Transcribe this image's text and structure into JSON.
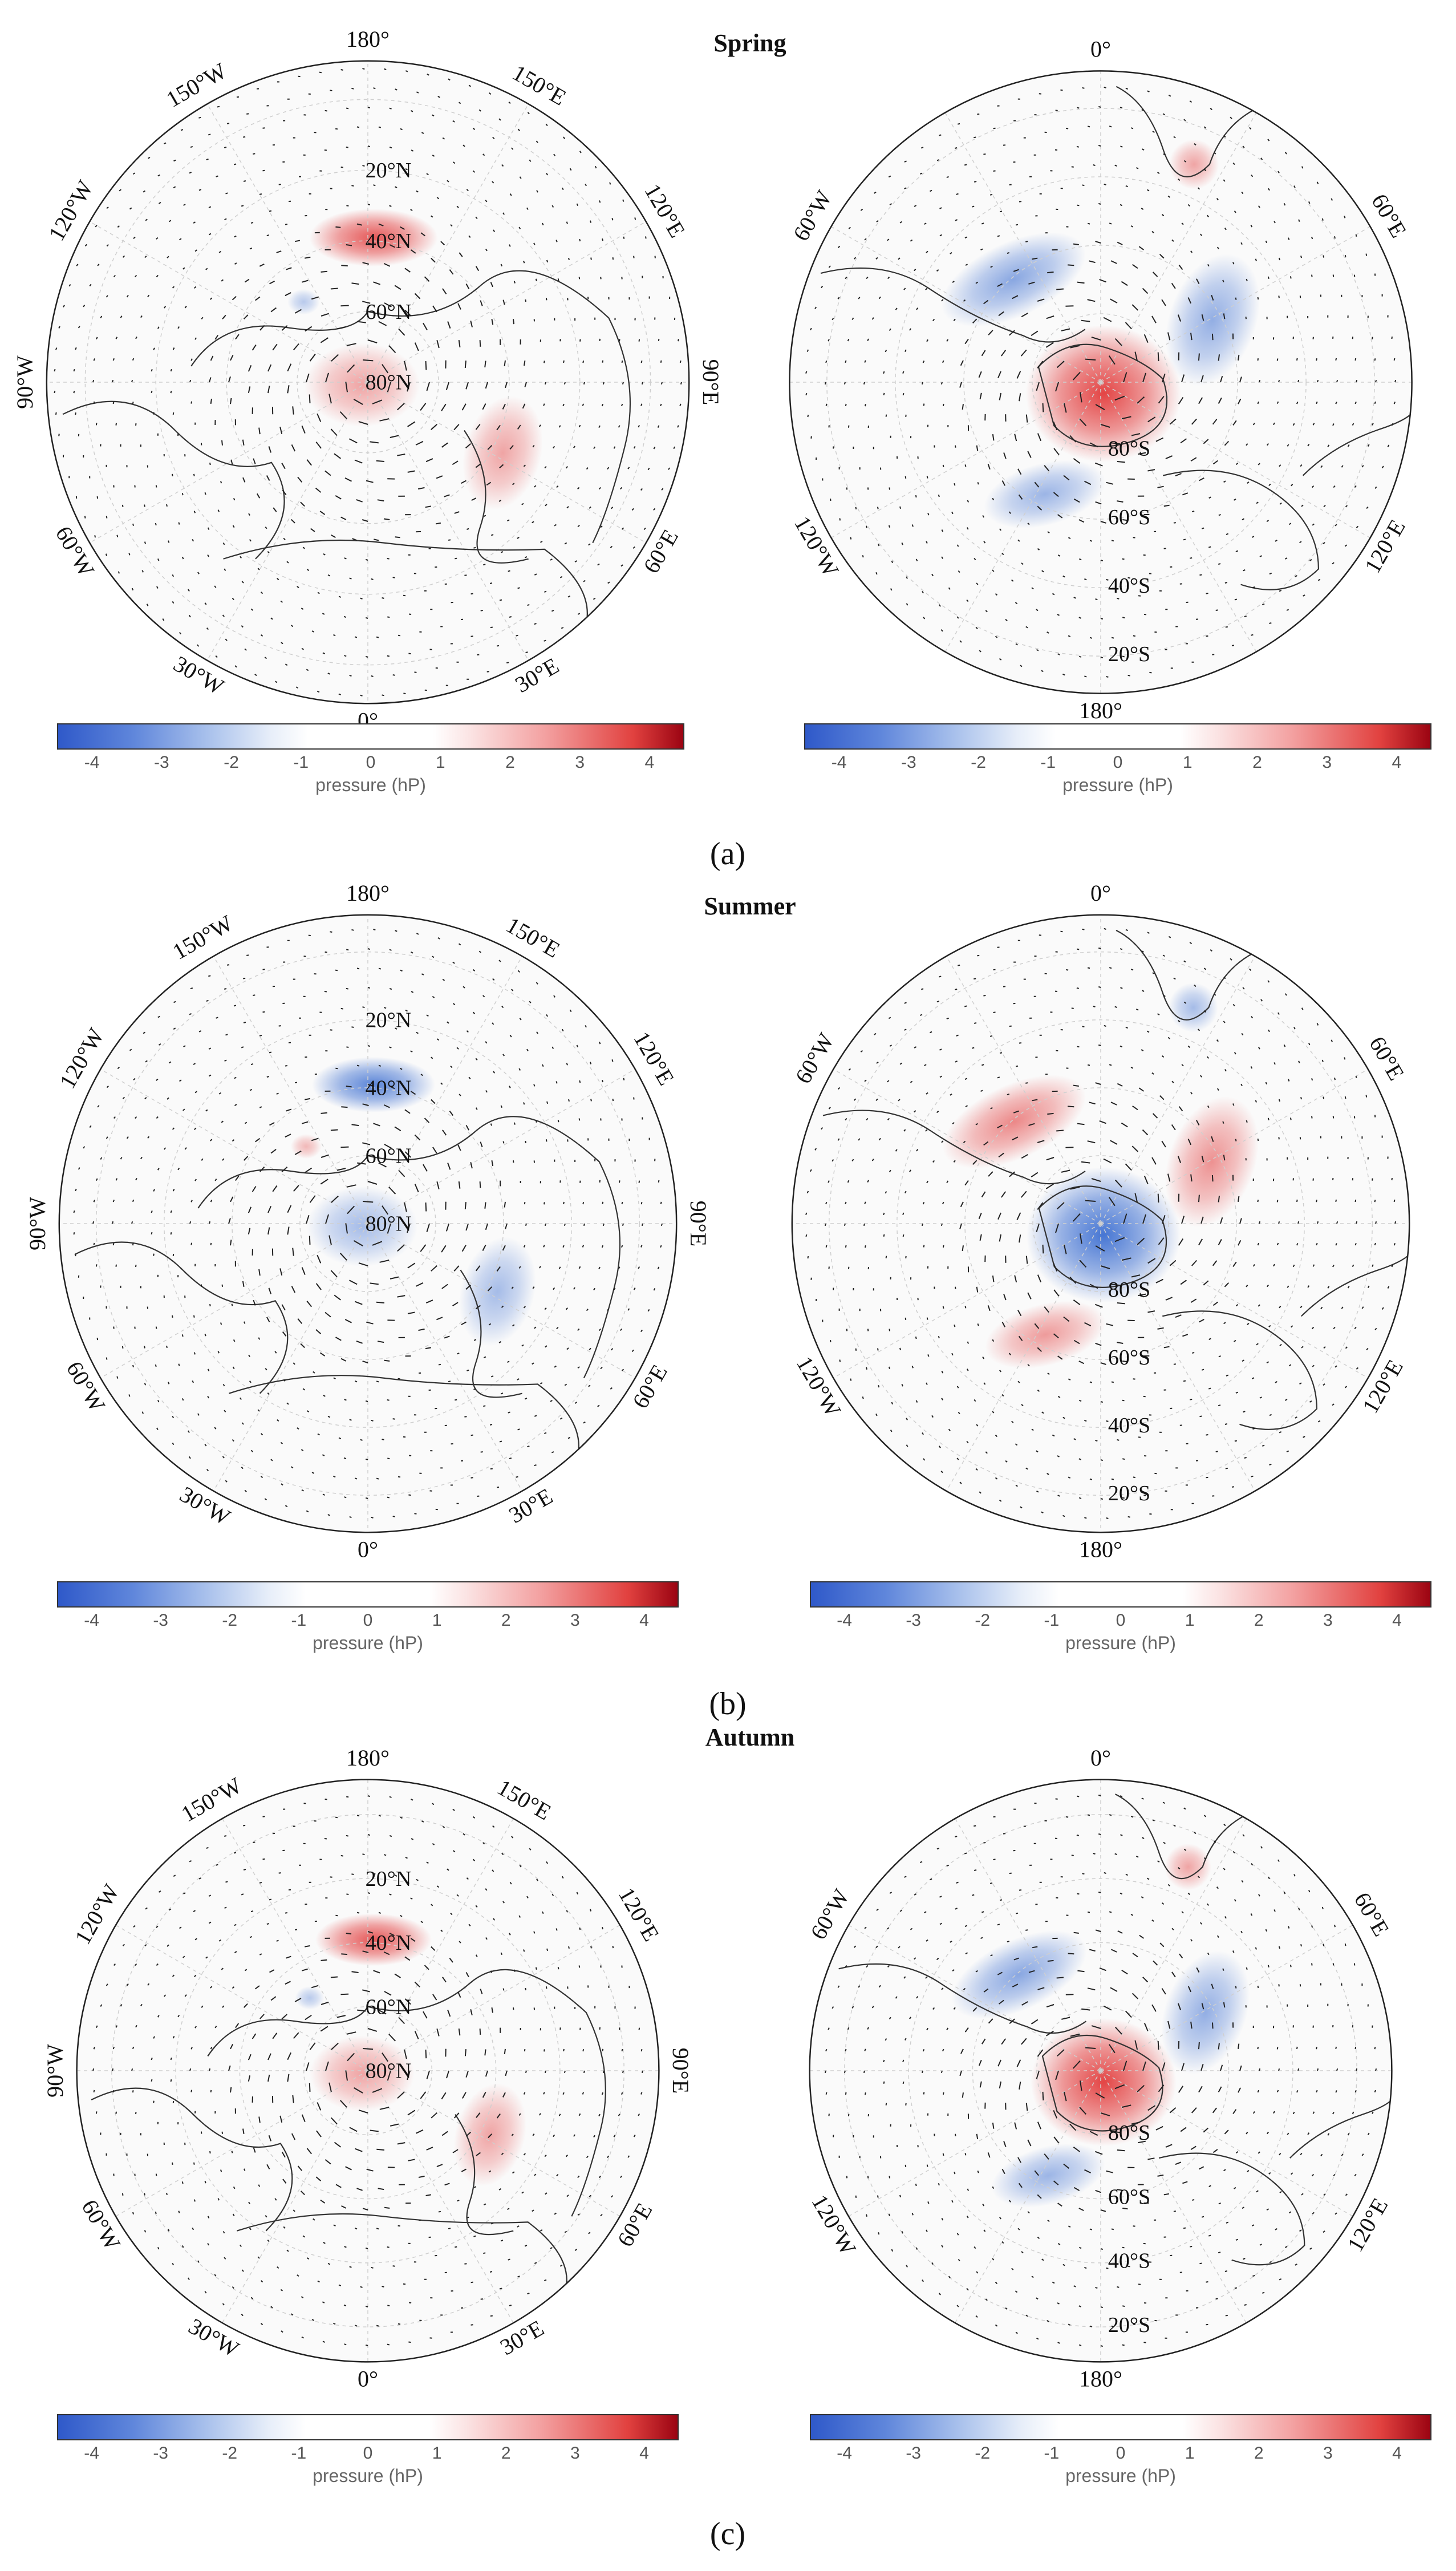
{
  "figure": {
    "rows": [
      {
        "id": "a",
        "season": "Spring",
        "label": "(a)",
        "north_sign": "pos",
        "south_sign": "pos"
      },
      {
        "id": "b",
        "season": "Summer",
        "label": "(b)",
        "north_sign": "neg",
        "south_sign": "neg"
      },
      {
        "id": "c",
        "season": "Autumn",
        "label": "(c)",
        "north_sign": "pos",
        "south_sign": "pos"
      }
    ],
    "north_map": {
      "hemisphere": "north",
      "lon_labels": {
        "top": "180°",
        "bottom": "0°",
        "left": "90°W",
        "right": "90°E",
        "upper_left_1": "150°W",
        "upper_left_2": "120°W",
        "upper_right_1": "150°E",
        "upper_right_2": "120°E",
        "lower_left_1": "60°W",
        "lower_left_2": "30°W",
        "lower_right_1": "60°E",
        "lower_right_2": "30°E"
      },
      "lat_labels": [
        "20°N",
        "40°N",
        "60°N",
        "80°N"
      ]
    },
    "south_map": {
      "hemisphere": "south",
      "lon_labels": {
        "top": "0°",
        "bottom": "180°",
        "upper_left": "60°W",
        "upper_right": "60°E",
        "lower_left": "120°W",
        "lower_right": "120°E"
      },
      "lat_labels": [
        "80°S",
        "60°S",
        "40°S",
        "20°S"
      ]
    },
    "colorbar": {
      "ticks": [
        "-4",
        "-3",
        "-2",
        "-1",
        "0",
        "1",
        "2",
        "3",
        "4"
      ],
      "label": "pressure (hP)",
      "range": [
        -4.5,
        4.5
      ],
      "colors": {
        "neg_strong": "#2f59c9",
        "neg_weak": "#a9c1ec",
        "neutral": "#ffffff",
        "pos_weak": "#f3a0a0",
        "pos_strong": "#9b0412"
      }
    },
    "anomalies": {
      "north_pos": [
        {
          "name": "40N-180 high",
          "sign": "pos",
          "strength": 2.5
        },
        {
          "name": "Arctic high",
          "sign": "pos",
          "strength": 2
        },
        {
          "name": "Central Asia high",
          "sign": "pos",
          "strength": 1.5
        }
      ],
      "north_neg": [
        {
          "name": "40N-180 low",
          "sign": "neg",
          "strength": -2
        },
        {
          "name": "Central Asia low",
          "sign": "neg",
          "strength": -1
        }
      ],
      "south_pos": [
        {
          "name": "polar high",
          "sign": "pos",
          "strength": 4
        },
        {
          "name": "Atlantic low",
          "sign": "neg",
          "strength": -2
        },
        {
          "name": "Indian low",
          "sign": "neg",
          "strength": -2
        },
        {
          "name": "Pacific low",
          "sign": "neg",
          "strength": -1.5
        },
        {
          "name": "Africa high",
          "sign": "pos",
          "strength": 1
        }
      ],
      "south_neg": [
        {
          "name": "polar low",
          "sign": "neg",
          "strength": -4
        },
        {
          "name": "Atlantic high",
          "sign": "pos",
          "strength": 2
        },
        {
          "name": "Indian high",
          "sign": "pos",
          "strength": 2
        },
        {
          "name": "Pacific high",
          "sign": "pos",
          "strength": 1.5
        },
        {
          "name": "Africa low",
          "sign": "neg",
          "strength": -1
        }
      ]
    }
  }
}
